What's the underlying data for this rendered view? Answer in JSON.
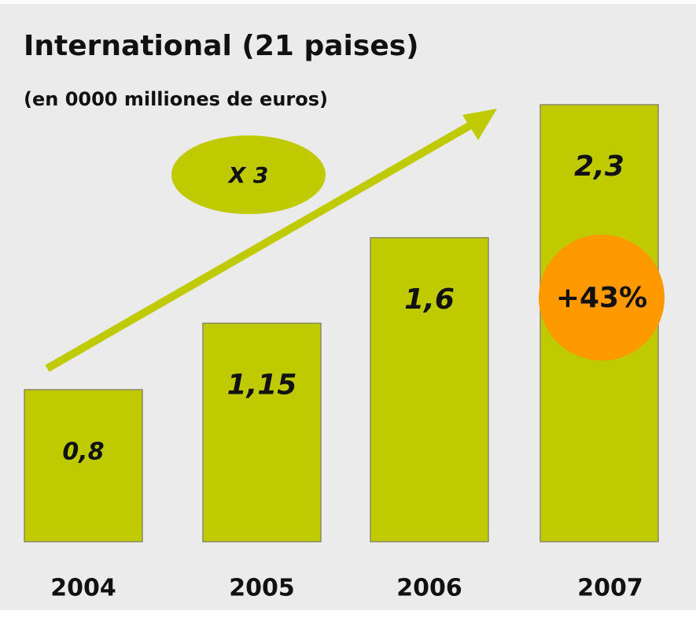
{
  "chart_data": {
    "type": "bar",
    "title": "International (21 paises)",
    "subtitle": "(en 0000 milliones de euros)",
    "categories": [
      "2004",
      "2005",
      "2006",
      "2007"
    ],
    "values": [
      0.8,
      1.15,
      1.6,
      2.3
    ],
    "value_labels": [
      "0,8",
      "1,15",
      "1,6",
      "2,3"
    ],
    "color": "#bfcb00",
    "annotations": [
      "X 3",
      "+43%"
    ]
  }
}
